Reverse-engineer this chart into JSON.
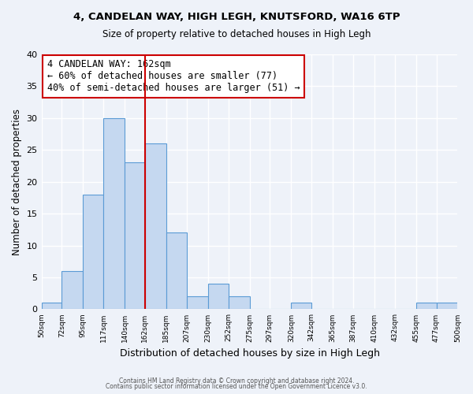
{
  "title1": "4, CANDELAN WAY, HIGH LEGH, KNUTSFORD, WA16 6TP",
  "title2": "Size of property relative to detached houses in High Legh",
  "xlabel": "Distribution of detached houses by size in High Legh",
  "ylabel": "Number of detached properties",
  "bin_edges": [
    50,
    72,
    95,
    117,
    140,
    162,
    185,
    207,
    230,
    252,
    275,
    297,
    320,
    342,
    365,
    387,
    410,
    432,
    455,
    477,
    500
  ],
  "counts": [
    1,
    6,
    18,
    30,
    23,
    26,
    12,
    2,
    4,
    2,
    0,
    0,
    1,
    0,
    0,
    0,
    0,
    0,
    1,
    1
  ],
  "bar_facecolor": "#c5d8f0",
  "bar_edgecolor": "#5b9bd5",
  "vline_x": 162,
  "vline_color": "#cc0000",
  "annotation_text": "4 CANDELAN WAY: 162sqm\n← 60% of detached houses are smaller (77)\n40% of semi-detached houses are larger (51) →",
  "annotation_box_edgecolor": "#cc0000",
  "annotation_fontsize": 8.5,
  "ylim": [
    0,
    40
  ],
  "yticks": [
    0,
    5,
    10,
    15,
    20,
    25,
    30,
    35,
    40
  ],
  "xtick_labels": [
    "50sqm",
    "72sqm",
    "95sqm",
    "117sqm",
    "140sqm",
    "162sqm",
    "185sqm",
    "207sqm",
    "230sqm",
    "252sqm",
    "275sqm",
    "297sqm",
    "320sqm",
    "342sqm",
    "365sqm",
    "387sqm",
    "410sqm",
    "432sqm",
    "455sqm",
    "477sqm",
    "500sqm"
  ],
  "footnote1": "Contains HM Land Registry data © Crown copyright and database right 2024.",
  "footnote2": "Contains public sector information licensed under the Open Government Licence v3.0.",
  "bg_color": "#eef2f9",
  "plot_bg_color": "#eef2f9"
}
